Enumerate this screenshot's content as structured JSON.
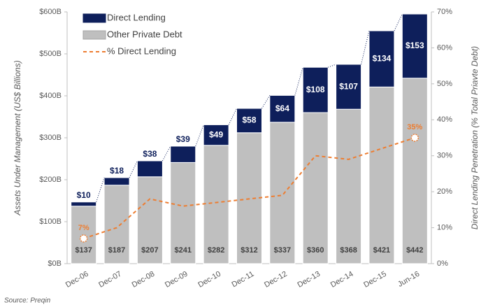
{
  "chart_data": {
    "type": "bar",
    "stacked": true,
    "categories": [
      "Dec-06",
      "Dec-07",
      "Dec-08",
      "Dec-09",
      "Dec-10",
      "Dec-11",
      "Dec-12",
      "Dec-13",
      "Dec-14",
      "Dec-15",
      "Jun-16"
    ],
    "series": [
      {
        "name": "Direct Lending",
        "color": "#0e1f5b",
        "values": [
          10,
          18,
          38,
          39,
          49,
          58,
          64,
          108,
          107,
          134,
          153
        ],
        "value_labels": [
          "$10",
          "$18",
          "$38",
          "$39",
          "$49",
          "$58",
          "$64",
          "$108",
          "$107",
          "$134",
          "$153"
        ]
      },
      {
        "name": "Other Private Debt",
        "color": "#bfbfbf",
        "values": [
          137,
          187,
          207,
          241,
          282,
          312,
          337,
          360,
          368,
          421,
          442
        ],
        "value_labels": [
          "$137",
          "$187",
          "$207",
          "$241",
          "$282",
          "$312",
          "$337",
          "$360",
          "$368",
          "$421",
          "$442"
        ]
      },
      {
        "name": "% Direct Lending",
        "type": "line",
        "axis": "y2",
        "color": "#ed7d31",
        "values": [
          7,
          10,
          18,
          16,
          17,
          18,
          19,
          30,
          29,
          32,
          35
        ],
        "value_labels": [
          "7%",
          null,
          null,
          null,
          null,
          null,
          null,
          null,
          null,
          null,
          "35%"
        ]
      }
    ],
    "ylim": [
      0,
      600
    ],
    "yticks": [
      {
        "value": 0,
        "label": "$0B"
      },
      {
        "value": 100,
        "label": "$100B"
      },
      {
        "value": 200,
        "label": "$200B"
      },
      {
        "value": 300,
        "label": "$300B"
      },
      {
        "value": 400,
        "label": "$400B"
      },
      {
        "value": 500,
        "label": "$500B"
      },
      {
        "value": 600,
        "label": "$600B"
      }
    ],
    "y2lim": [
      0,
      70
    ],
    "y2ticks": [
      {
        "value": 0,
        "label": "0%"
      },
      {
        "value": 10,
        "label": "10%"
      },
      {
        "value": 20,
        "label": "20%"
      },
      {
        "value": 30,
        "label": "30%"
      },
      {
        "value": 40,
        "label": "40%"
      },
      {
        "value": 50,
        "label": "50%"
      },
      {
        "value": 60,
        "label": "60%"
      },
      {
        "value": 70,
        "label": "70%"
      }
    ],
    "ylabel": "Assets Under Management (US$ Billions)",
    "y2label": "Direct Lending Penetration (% Total Priavte Debt)",
    "legend": "top-left",
    "source": "Source: Preqin"
  }
}
